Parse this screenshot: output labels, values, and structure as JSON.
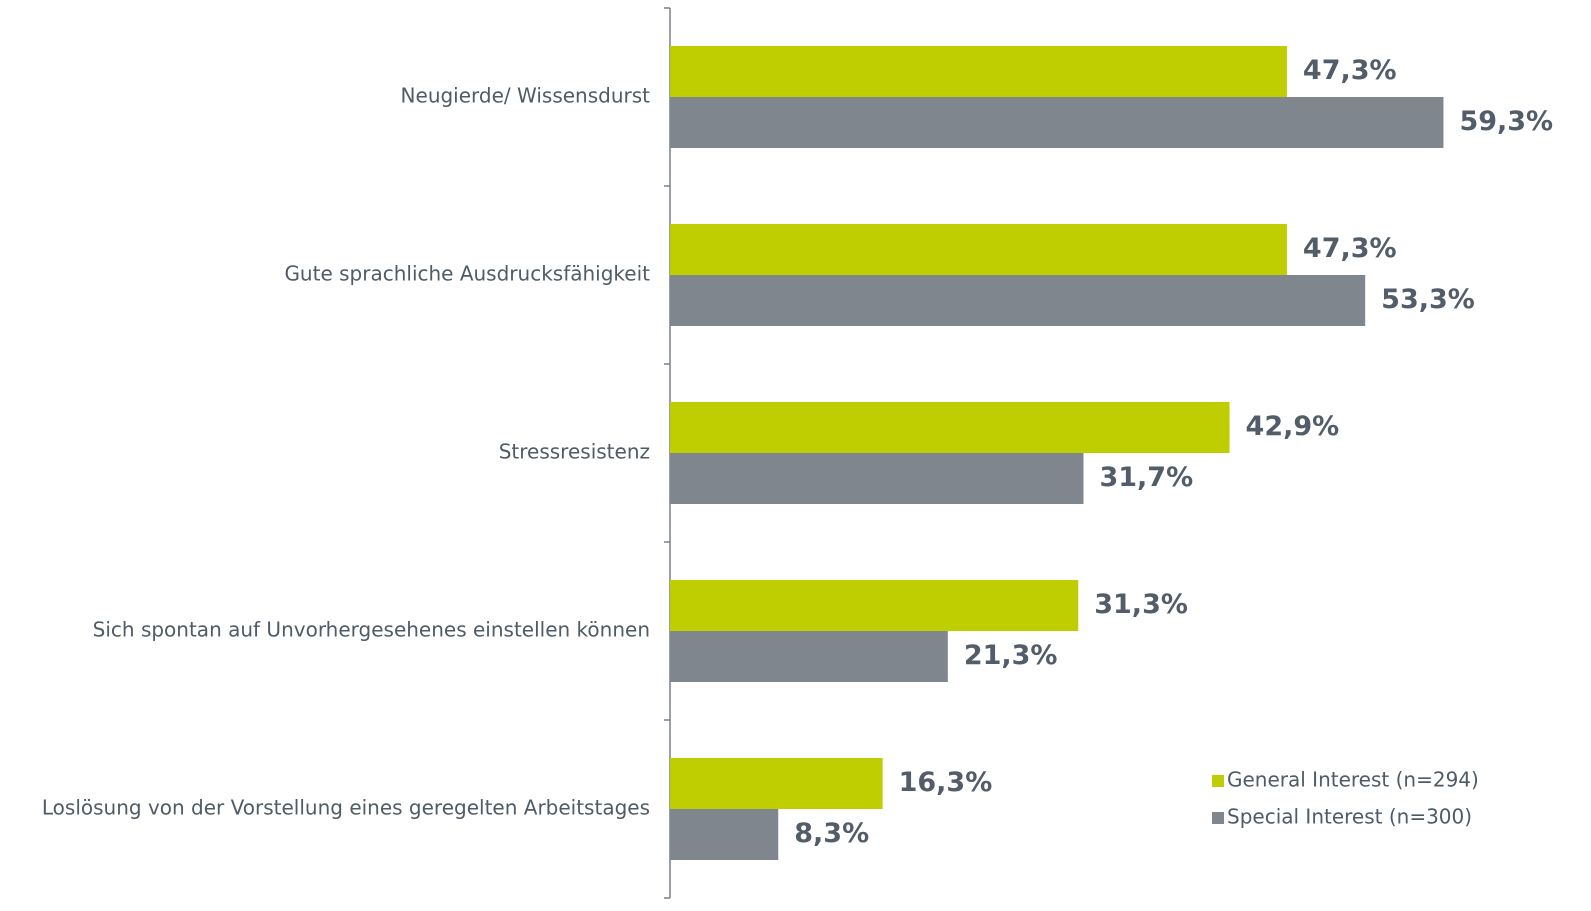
{
  "chart_data": {
    "type": "barh",
    "categories": [
      "Neugierde/ Wissensdurst",
      "Gute sprachliche Ausdrucksfähigkeit",
      "Stressresistenz",
      "Sich spontan auf Unvorhergesehenes einstellen können",
      "Loslösung von der Vorstellung eines geregelten Arbeitstages"
    ],
    "series": [
      {
        "name": "General Interest (n=294)",
        "color": "#bfce00",
        "values": [
          47.3,
          47.3,
          42.9,
          31.3,
          16.3
        ],
        "value_labels": [
          "47,3%",
          "47,3%",
          "42,9%",
          "31,3%",
          "16,3%"
        ]
      },
      {
        "name": "Special Interest (n=300)",
        "color": "#80868e",
        "values": [
          59.3,
          53.3,
          31.7,
          21.3,
          8.3
        ],
        "value_labels": [
          "59,3%",
          "53,3%",
          "31,7%",
          "21,3%",
          "8,3%"
        ]
      }
    ],
    "xlim": [
      0,
      70
    ],
    "legend": "lower right"
  }
}
